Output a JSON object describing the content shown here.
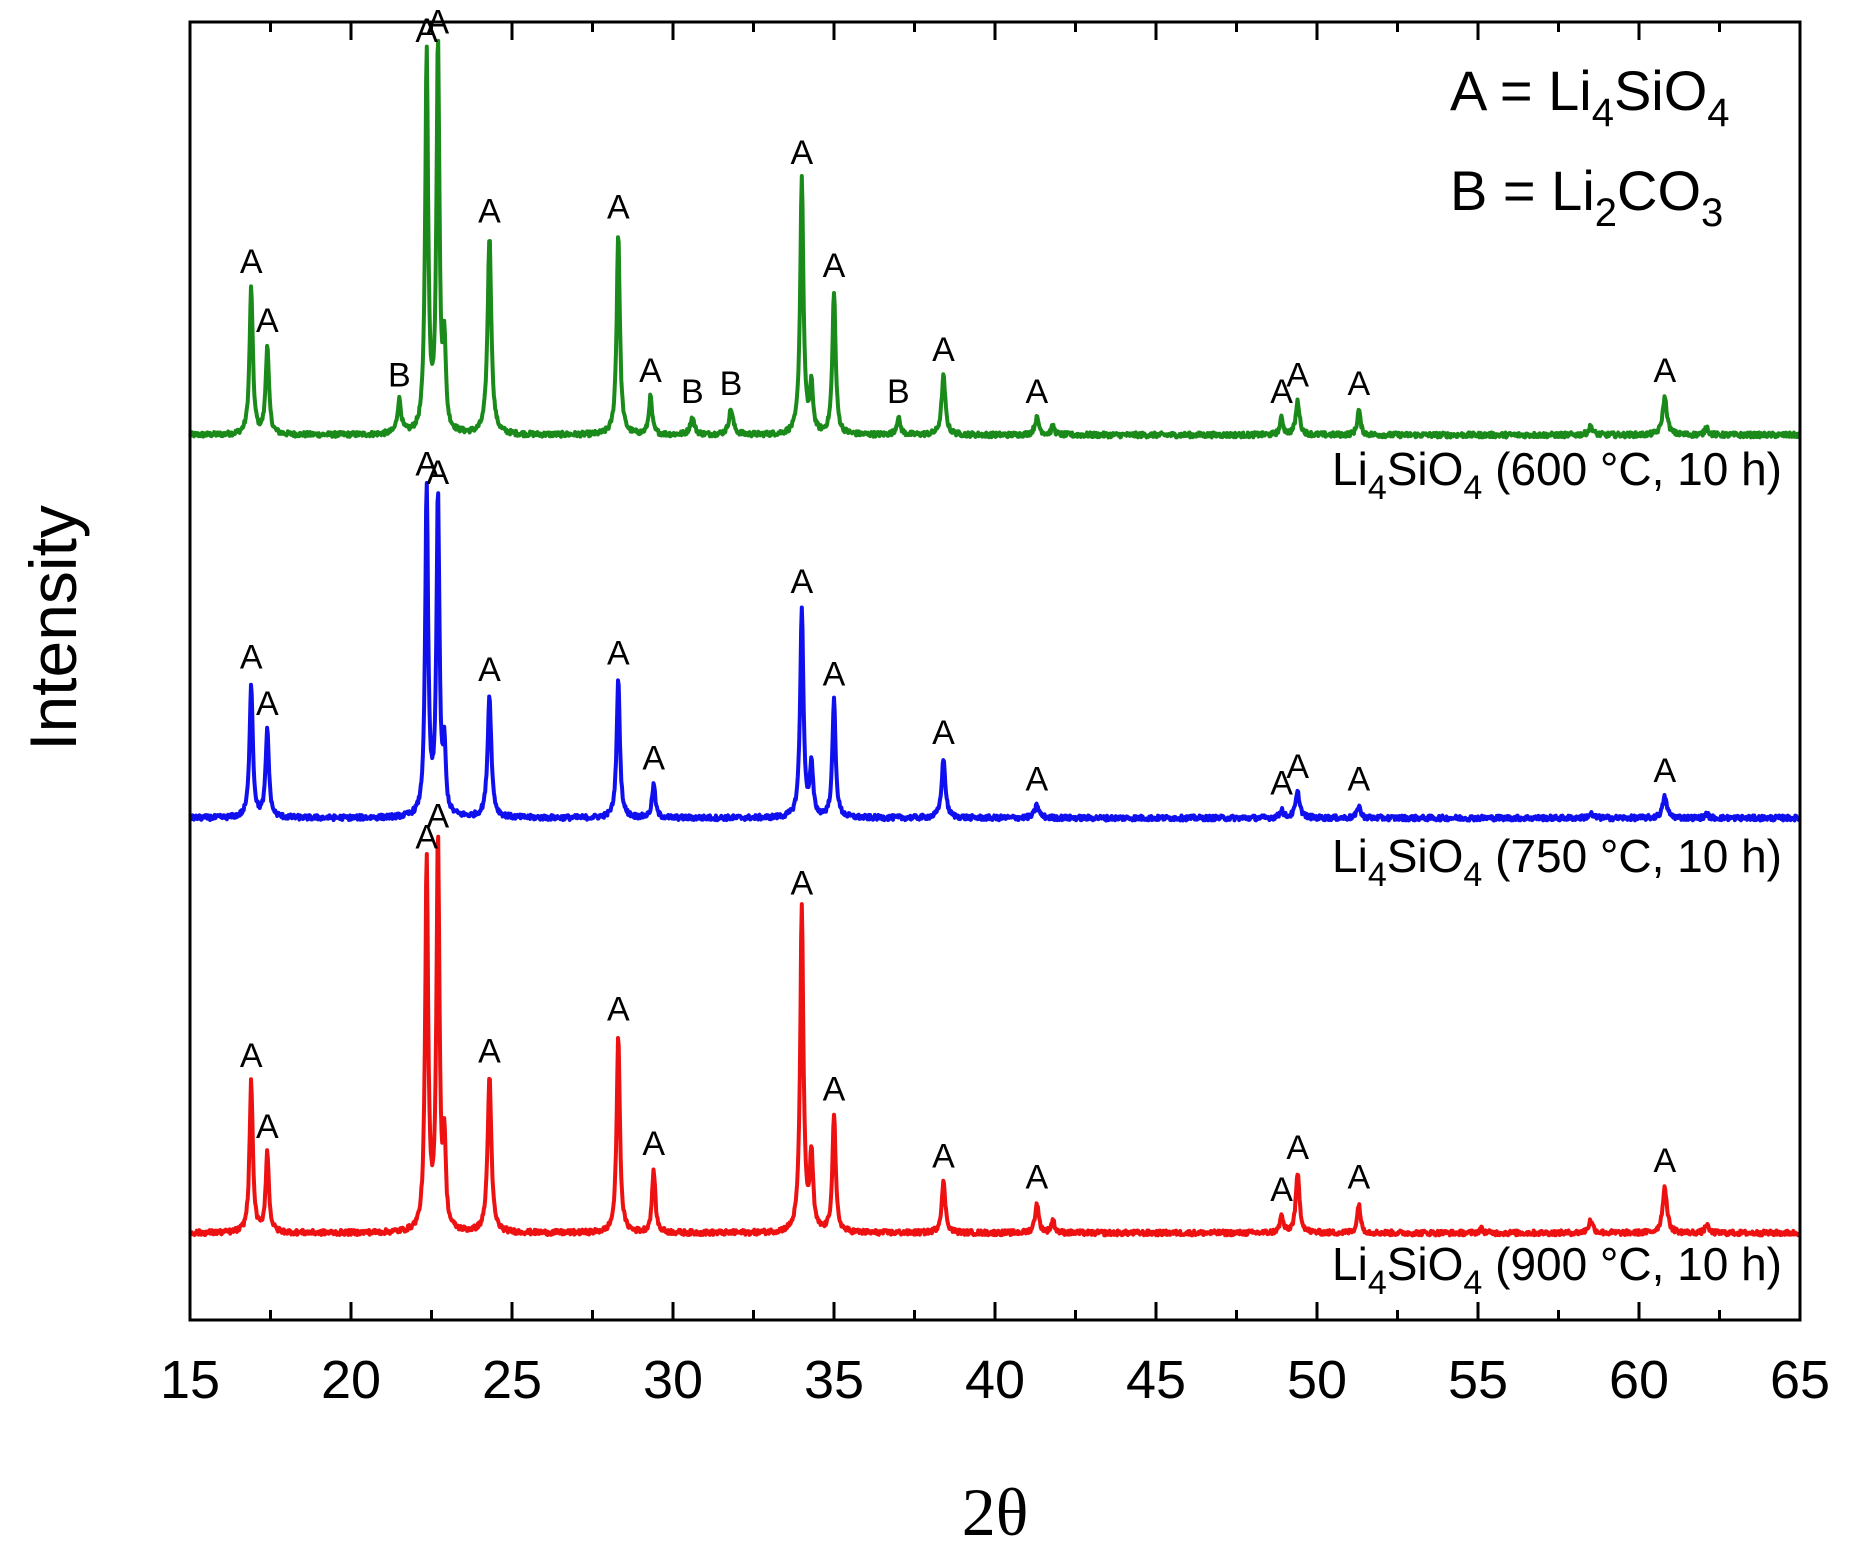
{
  "chart_data": {
    "type": "line",
    "xlabel": "2θ",
    "ylabel": "Intensity",
    "xlim": [
      15,
      65
    ],
    "xticks": [
      "15",
      "20",
      "25",
      "30",
      "35",
      "40",
      "45",
      "50",
      "55",
      "60",
      "65"
    ],
    "yticks_shown": false,
    "grid": false,
    "legend": {
      "placement": "top-right",
      "entries": [
        {
          "key": "A",
          "eq": "=",
          "formula": [
            {
              "t": "Li"
            },
            {
              "t": "4",
              "sub": true
            },
            {
              "t": "SiO"
            },
            {
              "t": "4",
              "sub": true
            }
          ]
        },
        {
          "key": "B",
          "eq": "=",
          "formula": [
            {
              "t": "Li"
            },
            {
              "t": "2",
              "sub": true
            },
            {
              "t": "CO"
            },
            {
              "t": "3",
              "sub": true
            }
          ]
        }
      ]
    },
    "series": [
      {
        "name": "Li4SiO4 (600 °C, 10 h)",
        "label": {
          "pre": "Li",
          "sub1": "4",
          "mid": "SiO",
          "sub2": "4",
          "post": " (600 °C, 10 h)"
        },
        "color": "#1a8a1a",
        "baseline": 0.0,
        "peaks": [
          {
            "x": 16.9,
            "h": 0.35,
            "w": 0.06,
            "label": "A"
          },
          {
            "x": 17.4,
            "h": 0.21,
            "w": 0.06,
            "label": "A"
          },
          {
            "x": 21.5,
            "h": 0.08,
            "w": 0.07,
            "label": "B"
          },
          {
            "x": 22.35,
            "h": 0.9,
            "w": 0.055,
            "label": "A"
          },
          {
            "x": 22.7,
            "h": 0.92,
            "w": 0.055,
            "label": "A"
          },
          {
            "x": 22.9,
            "h": 0.2,
            "w": 0.05,
            "label": ""
          },
          {
            "x": 24.3,
            "h": 0.47,
            "w": 0.07,
            "label": "A"
          },
          {
            "x": 28.3,
            "h": 0.48,
            "w": 0.06,
            "label": "A"
          },
          {
            "x": 29.3,
            "h": 0.09,
            "w": 0.06,
            "label": "A"
          },
          {
            "x": 30.6,
            "h": 0.04,
            "w": 0.08,
            "label": "B"
          },
          {
            "x": 31.8,
            "h": 0.06,
            "w": 0.08,
            "label": "B"
          },
          {
            "x": 34.0,
            "h": 0.61,
            "w": 0.06,
            "label": "A"
          },
          {
            "x": 34.3,
            "h": 0.11,
            "w": 0.06,
            "label": ""
          },
          {
            "x": 35.0,
            "h": 0.34,
            "w": 0.06,
            "label": "A"
          },
          {
            "x": 37.0,
            "h": 0.04,
            "w": 0.07,
            "label": "B"
          },
          {
            "x": 38.4,
            "h": 0.14,
            "w": 0.07,
            "label": "A"
          },
          {
            "x": 41.3,
            "h": 0.04,
            "w": 0.08,
            "label": "A"
          },
          {
            "x": 41.8,
            "h": 0.02,
            "w": 0.06,
            "label": ""
          },
          {
            "x": 48.9,
            "h": 0.04,
            "w": 0.06,
            "label": "A"
          },
          {
            "x": 49.4,
            "h": 0.08,
            "w": 0.07,
            "label": "A"
          },
          {
            "x": 51.3,
            "h": 0.06,
            "w": 0.06,
            "label": "A"
          },
          {
            "x": 58.5,
            "h": 0.02,
            "w": 0.08,
            "label": ""
          },
          {
            "x": 60.8,
            "h": 0.09,
            "w": 0.08,
            "label": "A"
          },
          {
            "x": 62.1,
            "h": 0.02,
            "w": 0.06,
            "label": ""
          }
        ]
      },
      {
        "name": "Li4SiO4 (750 °C, 10 h)",
        "label": {
          "pre": "Li",
          "sub1": "4",
          "mid": "SiO",
          "sub2": "4",
          "post": " (750 °C, 10 h)"
        },
        "color": "#1010ee",
        "baseline": 0.0,
        "peaks": [
          {
            "x": 16.9,
            "h": 0.32,
            "w": 0.06,
            "label": "A"
          },
          {
            "x": 17.4,
            "h": 0.21,
            "w": 0.06,
            "label": "A"
          },
          {
            "x": 22.35,
            "h": 0.78,
            "w": 0.055,
            "label": "A"
          },
          {
            "x": 22.7,
            "h": 0.76,
            "w": 0.055,
            "label": "A"
          },
          {
            "x": 22.9,
            "h": 0.15,
            "w": 0.05,
            "label": ""
          },
          {
            "x": 24.3,
            "h": 0.29,
            "w": 0.07,
            "label": "A"
          },
          {
            "x": 28.3,
            "h": 0.33,
            "w": 0.06,
            "label": "A"
          },
          {
            "x": 29.4,
            "h": 0.08,
            "w": 0.06,
            "label": "A"
          },
          {
            "x": 34.0,
            "h": 0.5,
            "w": 0.06,
            "label": "A"
          },
          {
            "x": 34.3,
            "h": 0.12,
            "w": 0.06,
            "label": ""
          },
          {
            "x": 35.0,
            "h": 0.28,
            "w": 0.06,
            "label": "A"
          },
          {
            "x": 38.4,
            "h": 0.14,
            "w": 0.07,
            "label": "A"
          },
          {
            "x": 41.3,
            "h": 0.03,
            "w": 0.08,
            "label": "A"
          },
          {
            "x": 48.9,
            "h": 0.02,
            "w": 0.06,
            "label": "A"
          },
          {
            "x": 49.4,
            "h": 0.06,
            "w": 0.08,
            "label": "A"
          },
          {
            "x": 51.3,
            "h": 0.03,
            "w": 0.06,
            "label": "A"
          },
          {
            "x": 58.5,
            "h": 0.01,
            "w": 0.08,
            "label": ""
          },
          {
            "x": 60.8,
            "h": 0.05,
            "w": 0.08,
            "label": "A"
          },
          {
            "x": 62.1,
            "h": 0.01,
            "w": 0.06,
            "label": ""
          }
        ]
      },
      {
        "name": "Li4SiO4 (900 °C, 10 h)",
        "label": {
          "pre": "Li",
          "sub1": "4",
          "mid": "SiO",
          "sub2": "4",
          "post": " (900 °C, 10 h)"
        },
        "color": "#ee1111",
        "baseline": 0.0,
        "peaks": [
          {
            "x": 16.9,
            "h": 0.36,
            "w": 0.06,
            "label": "A"
          },
          {
            "x": 17.4,
            "h": 0.19,
            "w": 0.06,
            "label": "A"
          },
          {
            "x": 22.35,
            "h": 0.88,
            "w": 0.055,
            "label": "A"
          },
          {
            "x": 22.7,
            "h": 0.93,
            "w": 0.055,
            "label": "A"
          },
          {
            "x": 22.9,
            "h": 0.2,
            "w": 0.05,
            "label": ""
          },
          {
            "x": 24.3,
            "h": 0.37,
            "w": 0.07,
            "label": "A"
          },
          {
            "x": 28.3,
            "h": 0.47,
            "w": 0.06,
            "label": "A"
          },
          {
            "x": 29.4,
            "h": 0.15,
            "w": 0.06,
            "label": "A"
          },
          {
            "x": 34.0,
            "h": 0.77,
            "w": 0.06,
            "label": "A"
          },
          {
            "x": 34.3,
            "h": 0.18,
            "w": 0.06,
            "label": ""
          },
          {
            "x": 35.0,
            "h": 0.28,
            "w": 0.06,
            "label": "A"
          },
          {
            "x": 38.4,
            "h": 0.12,
            "w": 0.07,
            "label": "A"
          },
          {
            "x": 41.3,
            "h": 0.07,
            "w": 0.07,
            "label": "A"
          },
          {
            "x": 41.8,
            "h": 0.03,
            "w": 0.06,
            "label": ""
          },
          {
            "x": 48.9,
            "h": 0.04,
            "w": 0.06,
            "label": "A"
          },
          {
            "x": 49.4,
            "h": 0.14,
            "w": 0.07,
            "label": "A"
          },
          {
            "x": 51.3,
            "h": 0.07,
            "w": 0.06,
            "label": "A"
          },
          {
            "x": 55.1,
            "h": 0.01,
            "w": 0.07,
            "label": ""
          },
          {
            "x": 58.5,
            "h": 0.03,
            "w": 0.08,
            "label": ""
          },
          {
            "x": 60.8,
            "h": 0.11,
            "w": 0.08,
            "label": "A"
          },
          {
            "x": 62.1,
            "h": 0.02,
            "w": 0.06,
            "label": ""
          }
        ]
      }
    ]
  }
}
